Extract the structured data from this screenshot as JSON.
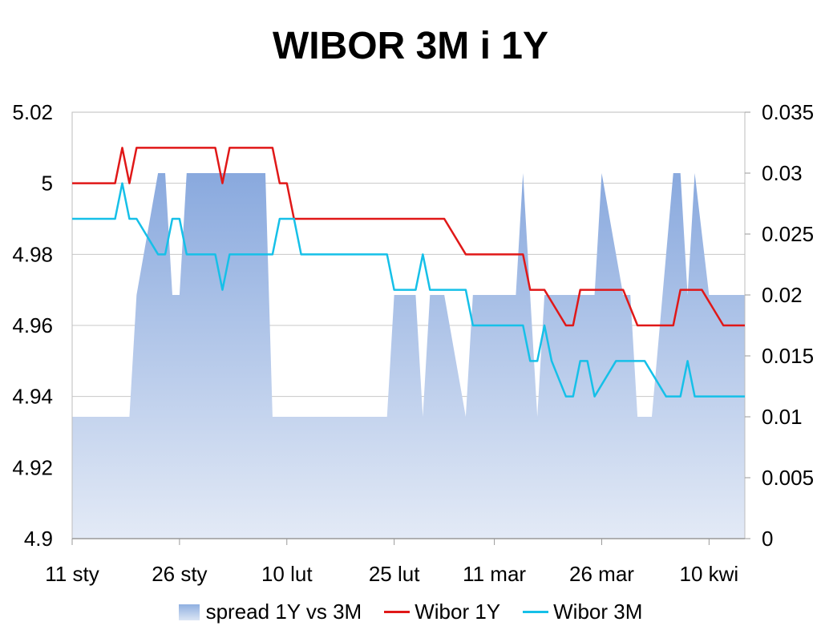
{
  "chart_data": {
    "type": "line",
    "title": "WIBOR 3M i 1Y",
    "x_tick_labels": [
      "11 sty",
      "26 sty",
      "10 lut",
      "25 lut",
      "11 mar",
      "26 mar",
      "10 kwi"
    ],
    "x_tick_days": [
      0,
      15,
      30,
      45,
      59,
      74,
      89
    ],
    "xlim": [
      0,
      94
    ],
    "y_left": {
      "ylim": [
        4.9,
        5.02
      ],
      "ticks": [
        "4.9",
        "4.92",
        "4.94",
        "4.96",
        "4.98",
        "5",
        "5.02"
      ]
    },
    "y_right": {
      "ylim": [
        0,
        0.035
      ],
      "ticks": [
        "0",
        "0.005",
        "0.01",
        "0.015",
        "0.02",
        "0.025",
        "0.03",
        "0.035"
      ]
    },
    "grid": true,
    "legend": "bottom",
    "series": [
      {
        "name": "spread 1Y vs 3M",
        "type": "area",
        "axis": "right",
        "color": "#8fb0e0",
        "points": [
          [
            0,
            0.01
          ],
          [
            8,
            0.01
          ],
          [
            9,
            0.02
          ],
          [
            12,
            0.03
          ],
          [
            13,
            0.03
          ],
          [
            14,
            0.02
          ],
          [
            15,
            0.02
          ],
          [
            16,
            0.03
          ],
          [
            27,
            0.03
          ],
          [
            28,
            0.01
          ],
          [
            44,
            0.01
          ],
          [
            45,
            0.02
          ],
          [
            48,
            0.02
          ],
          [
            49,
            0.01
          ],
          [
            50,
            0.02
          ],
          [
            52,
            0.02
          ],
          [
            55,
            0.01
          ],
          [
            56,
            0.02
          ],
          [
            62,
            0.02
          ],
          [
            63,
            0.03
          ],
          [
            65,
            0.01
          ],
          [
            66,
            0.02
          ],
          [
            73,
            0.02
          ],
          [
            74,
            0.03
          ],
          [
            77,
            0.02
          ],
          [
            78,
            0.02
          ],
          [
            79,
            0.01
          ],
          [
            81,
            0.01
          ],
          [
            84,
            0.03
          ],
          [
            85,
            0.03
          ],
          [
            86,
            0.02
          ],
          [
            87,
            0.03
          ],
          [
            89,
            0.02
          ],
          [
            94,
            0.02
          ]
        ]
      },
      {
        "name": "Wibor 1Y",
        "type": "line",
        "axis": "left",
        "color": "#e01818",
        "points": [
          [
            0,
            5.0
          ],
          [
            6,
            5.0
          ],
          [
            7,
            5.01
          ],
          [
            8,
            5.0
          ],
          [
            9,
            5.01
          ],
          [
            20,
            5.01
          ],
          [
            21,
            5.0
          ],
          [
            22,
            5.01
          ],
          [
            28,
            5.01
          ],
          [
            29,
            5.0
          ],
          [
            30,
            5.0
          ],
          [
            31,
            4.99
          ],
          [
            52,
            4.99
          ],
          [
            55,
            4.98
          ],
          [
            63,
            4.98
          ],
          [
            64,
            4.97
          ],
          [
            66,
            4.97
          ],
          [
            69,
            4.96
          ],
          [
            70,
            4.96
          ],
          [
            71,
            4.97
          ],
          [
            77,
            4.97
          ],
          [
            79,
            4.96
          ],
          [
            84,
            4.96
          ],
          [
            85,
            4.97
          ],
          [
            88,
            4.97
          ],
          [
            91,
            4.96
          ],
          [
            94,
            4.96
          ]
        ]
      },
      {
        "name": "Wibor 3M",
        "type": "line",
        "axis": "left",
        "color": "#16c0e8",
        "points": [
          [
            0,
            4.99
          ],
          [
            6,
            4.99
          ],
          [
            7,
            5.0
          ],
          [
            8,
            4.99
          ],
          [
            9,
            4.99
          ],
          [
            12,
            4.98
          ],
          [
            13,
            4.98
          ],
          [
            14,
            4.99
          ],
          [
            15,
            4.99
          ],
          [
            16,
            4.98
          ],
          [
            20,
            4.98
          ],
          [
            21,
            4.97
          ],
          [
            22,
            4.98
          ],
          [
            28,
            4.98
          ],
          [
            29,
            4.99
          ],
          [
            31,
            4.99
          ],
          [
            32,
            4.98
          ],
          [
            44,
            4.98
          ],
          [
            45,
            4.97
          ],
          [
            48,
            4.97
          ],
          [
            49,
            4.98
          ],
          [
            50,
            4.97
          ],
          [
            55,
            4.97
          ],
          [
            56,
            4.96
          ],
          [
            63,
            4.96
          ],
          [
            64,
            4.95
          ],
          [
            65,
            4.95
          ],
          [
            66,
            4.96
          ],
          [
            67,
            4.95
          ],
          [
            69,
            4.94
          ],
          [
            70,
            4.94
          ],
          [
            71,
            4.95
          ],
          [
            72,
            4.95
          ],
          [
            73,
            4.94
          ],
          [
            76,
            4.95
          ],
          [
            80,
            4.95
          ],
          [
            83,
            4.94
          ],
          [
            85,
            4.94
          ],
          [
            86,
            4.95
          ],
          [
            87,
            4.94
          ],
          [
            94,
            4.94
          ]
        ]
      }
    ]
  }
}
